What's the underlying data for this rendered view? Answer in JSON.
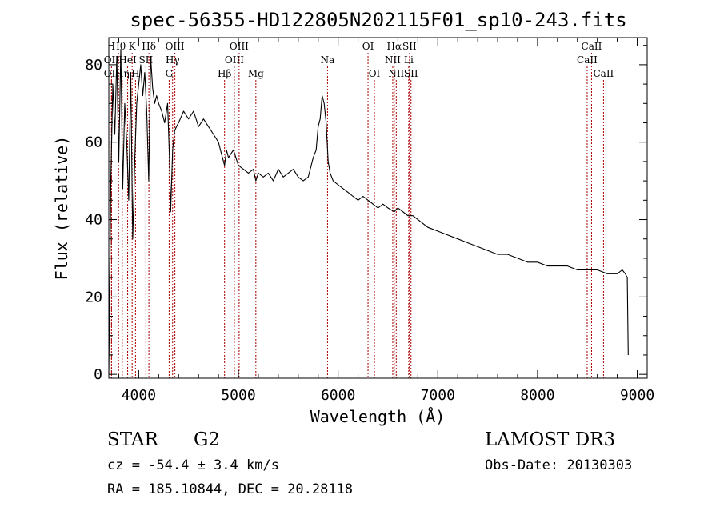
{
  "chart_data": {
    "type": "line",
    "title": "spec-56355-HD122805N202115F01_sp10-243.fits",
    "xlabel": "Wavelength (Å)",
    "ylabel": "Flux (relative)",
    "xlim": [
      3700,
      9100
    ],
    "ylim": [
      -1,
      87
    ],
    "x_ticks": [
      4000,
      5000,
      6000,
      7000,
      8000,
      9000
    ],
    "y_ticks": [
      0,
      20,
      40,
      60,
      80
    ],
    "grid": false,
    "series": [
      {
        "name": "spectrum",
        "x": [
          3700,
          3720,
          3740,
          3760,
          3780,
          3800,
          3820,
          3840,
          3860,
          3880,
          3900,
          3920,
          3940,
          3960,
          3980,
          4000,
          4020,
          4040,
          4060,
          4080,
          4100,
          4120,
          4140,
          4160,
          4180,
          4200,
          4230,
          4260,
          4290,
          4310,
          4320,
          4340,
          4360,
          4380,
          4400,
          4450,
          4500,
          4550,
          4600,
          4650,
          4700,
          4750,
          4800,
          4830,
          4861,
          4880,
          4900,
          4950,
          5000,
          5050,
          5100,
          5150,
          5175,
          5200,
          5250,
          5300,
          5350,
          5400,
          5450,
          5500,
          5550,
          5600,
          5650,
          5700,
          5750,
          5780,
          5800,
          5820,
          5840,
          5860,
          5880,
          5900,
          5920,
          5950,
          6000,
          6050,
          6100,
          6150,
          6200,
          6250,
          6300,
          6350,
          6400,
          6450,
          6500,
          6563,
          6600,
          6650,
          6700,
          6750,
          6800,
          6900,
          7000,
          7100,
          7200,
          7300,
          7400,
          7500,
          7600,
          7700,
          7800,
          7900,
          8000,
          8100,
          8200,
          8300,
          8400,
          8500,
          8600,
          8700,
          8800,
          8850,
          8880,
          8900,
          8910
        ],
        "y": [
          0,
          50,
          75,
          62,
          82,
          55,
          84,
          48,
          70,
          60,
          45,
          78,
          35,
          55,
          70,
          75,
          80,
          72,
          78,
          68,
          50,
          82,
          74,
          70,
          72,
          70,
          68,
          65,
          70,
          55,
          42,
          58,
          63,
          64,
          65,
          68,
          66,
          68,
          64,
          66,
          64,
          62,
          60,
          57,
          54,
          58,
          56,
          58,
          54,
          53,
          52,
          53,
          50,
          52,
          51,
          52,
          50,
          53,
          51,
          52,
          53,
          51,
          50,
          51,
          56,
          58,
          64,
          66,
          72,
          70,
          65,
          55,
          52,
          50,
          49,
          48,
          47,
          46,
          45,
          46,
          45,
          44,
          43,
          44,
          43,
          42,
          43,
          42,
          41,
          41,
          40,
          38,
          37,
          36,
          35,
          34,
          33,
          32,
          31,
          31,
          30,
          29,
          29,
          28,
          28,
          28,
          27,
          27,
          27,
          26,
          26,
          27,
          26,
          25,
          5
        ]
      }
    ],
    "lines": [
      {
        "label": "OII",
        "x": 3727,
        "row": 2
      },
      {
        "label": "OII",
        "x": 3727,
        "row": 3
      },
      {
        "label": "Hθ",
        "x": 3798,
        "row": 1
      },
      {
        "label": "Hη",
        "x": 3835,
        "row": 3
      },
      {
        "label": "HeI",
        "x": 3889,
        "row": 2
      },
      {
        "label": "K",
        "x": 3934,
        "row": 1
      },
      {
        "label": "H",
        "x": 3968,
        "row": 3
      },
      {
        "label": "SII",
        "x": 4072,
        "row": 2
      },
      {
        "label": "Hδ",
        "x": 4102,
        "row": 1
      },
      {
        "label": "OIII",
        "x": 4363,
        "row": 1
      },
      {
        "label": "Hγ",
        "x": 4340,
        "row": 2
      },
      {
        "label": "G",
        "x": 4305,
        "row": 3
      },
      {
        "label": "Hβ",
        "x": 4861,
        "row": 3
      },
      {
        "label": "OIII",
        "x": 5007,
        "row": 1
      },
      {
        "label": "OIII",
        "x": 4959,
        "row": 2
      },
      {
        "label": "Mg",
        "x": 5175,
        "row": 3
      },
      {
        "label": "Na",
        "x": 5894,
        "row": 2
      },
      {
        "label": "OI",
        "x": 6300,
        "row": 1
      },
      {
        "label": "OI",
        "x": 6364,
        "row": 3
      },
      {
        "label": "Hα",
        "x": 6563,
        "row": 1
      },
      {
        "label": "NII",
        "x": 6548,
        "row": 2
      },
      {
        "label": "NII",
        "x": 6583,
        "row": 3
      },
      {
        "label": "SII",
        "x": 6716,
        "row": 1
      },
      {
        "label": "Li",
        "x": 6708,
        "row": 2
      },
      {
        "label": "SII",
        "x": 6731,
        "row": 3
      },
      {
        "label": "CaII",
        "x": 8542,
        "row": 1
      },
      {
        "label": "CaII",
        "x": 8498,
        "row": 2
      },
      {
        "label": "CaII",
        "x": 8662,
        "row": 3
      }
    ]
  },
  "info": {
    "object_class": "STAR",
    "subclass": "G2",
    "survey": "LAMOST DR3",
    "cz": "cz = -54.4 ± 3.4 km/s",
    "obs_date": "Obs-Date: 20130303",
    "coords": "RA = 185.10844, DEC =  20.28118"
  },
  "colors": {
    "line_markers": "#aa0000",
    "spectrum": "#000000"
  }
}
